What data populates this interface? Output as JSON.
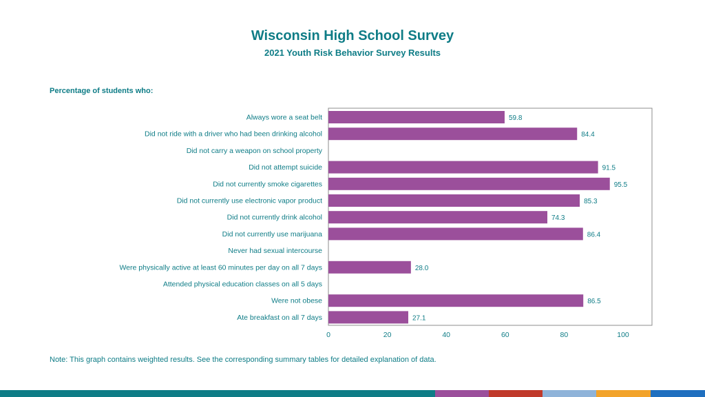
{
  "header": {
    "title": "Wisconsin High School Survey",
    "subtitle": "2021 Youth Risk Behavior Survey Results"
  },
  "section_label": "Percentage of students who:",
  "note": "Note: This graph contains weighted results. See the corresponding summary tables for detailed explanation of data.",
  "colors": {
    "bar": "#9b4f9b",
    "text": "#0e7c86",
    "frame": "#8c8c8c"
  },
  "footer_colors": [
    "#0e7c86",
    "#9b4f9b",
    "#c0392b",
    "#8fb3d9",
    "#f2a32b",
    "#1f6fbf"
  ],
  "chart_data": {
    "type": "bar",
    "orientation": "horizontal",
    "categories": [
      "Always wore a seat belt",
      "Did not ride with a driver who had been drinking alcohol",
      "Did not carry a weapon on school property",
      "Did not attempt suicide",
      "Did not currently smoke cigarettes",
      "Did not currently use electronic vapor product",
      "Did not currently drink alcohol",
      "Did not currently use marijuana",
      "Never had sexual intercourse",
      "Were physically active at least 60 minutes per day on all 7 days",
      "Attended physical education classes on all 5 days",
      "Were not obese",
      "Ate breakfast on all 7 days"
    ],
    "values": [
      59.8,
      84.4,
      null,
      91.5,
      95.5,
      85.3,
      74.3,
      86.4,
      null,
      28.0,
      null,
      86.5,
      27.1
    ],
    "value_labels": [
      "59.8",
      "84.4",
      "",
      "91.5",
      "95.5",
      "85.3",
      "74.3",
      "86.4",
      "",
      "28.0",
      "",
      "86.5",
      "27.1"
    ],
    "xlim": [
      0,
      100
    ],
    "xticks": [
      "0",
      "20",
      "40",
      "60",
      "80",
      "100"
    ],
    "grid": false,
    "legend": "none"
  }
}
